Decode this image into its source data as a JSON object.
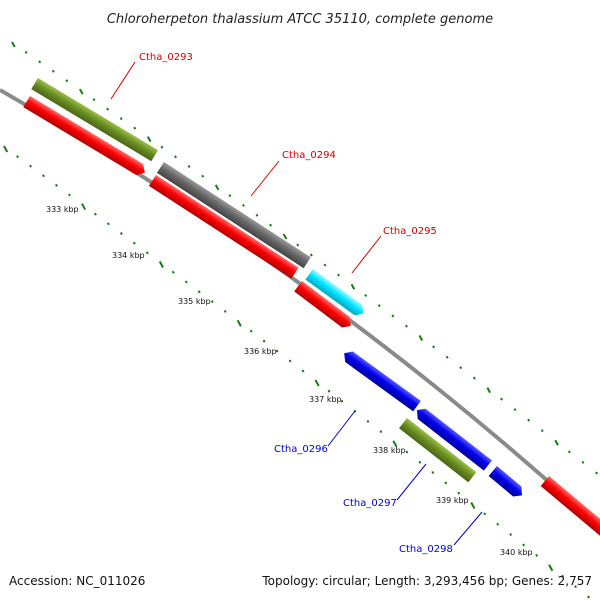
{
  "title": "Chloroherpeton thalassium ATCC 35110, complete genome",
  "footer": {
    "accession": "Accession: NC_011026",
    "summary": "Topology: circular; Length: 3,293,456 bp; Genes: 2,757"
  },
  "colors": {
    "backbone": "#7f7f7f",
    "tick": "#1a7a1a",
    "label_forward": "#cc0000",
    "label_reverse": "#0000cc",
    "gene_red": "#ff0000",
    "gene_olive": "#6b8e23",
    "gene_grey": "#696969",
    "gene_cyan": "#00e5ff",
    "gene_blue": "#0000ee"
  },
  "scale_ticks": [
    "333 kbp",
    "334 kbp",
    "335 kbp",
    "336 kbp",
    "337 kbp",
    "338 kbp",
    "339 kbp",
    "340 kbp"
  ],
  "gene_labels": {
    "ctha_0293": "Ctha_0293",
    "ctha_0294": "Ctha_0294",
    "ctha_0295": "Ctha_0295",
    "ctha_0296": "Ctha_0296",
    "ctha_0297": "Ctha_0297",
    "ctha_0298": "Ctha_0298"
  }
}
